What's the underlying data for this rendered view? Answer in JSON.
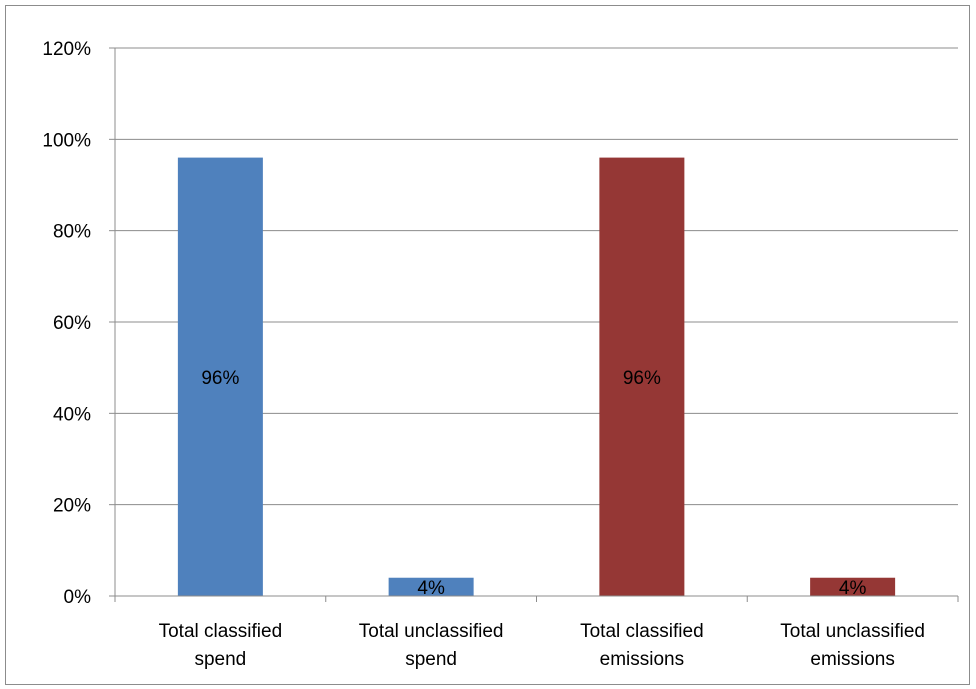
{
  "chart_data": {
    "type": "bar",
    "title": "",
    "xlabel": "",
    "ylabel": "",
    "categories": [
      [
        "Total classified",
        "spend"
      ],
      [
        "Total unclassified",
        "spend"
      ],
      [
        "Total classified",
        "emissions"
      ],
      [
        "Total unclassified",
        "emissions"
      ]
    ],
    "values": [
      96,
      4,
      96,
      4
    ],
    "data_labels": [
      "96%",
      "4%",
      "96%",
      "4%"
    ],
    "bar_colors": [
      "#4f81bd",
      "#4f81bd",
      "#953735",
      "#953735"
    ],
    "ylim": [
      0,
      120
    ],
    "yticks": [
      0,
      20,
      40,
      60,
      80,
      100,
      120
    ],
    "ytick_labels": [
      "0%",
      "20%",
      "40%",
      "60%",
      "80%",
      "100%",
      "120%"
    ],
    "grid": true,
    "legend": "none"
  }
}
